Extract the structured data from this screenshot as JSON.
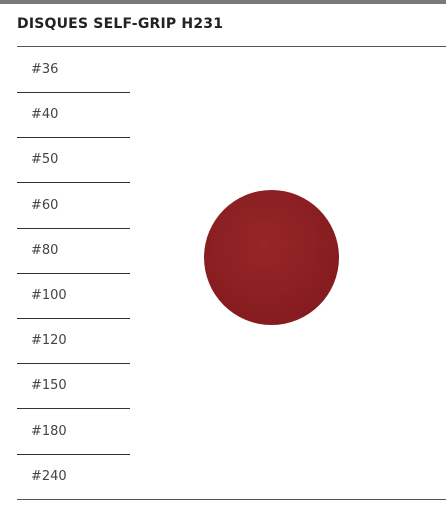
{
  "header": {
    "title": "DISQUES SELF-GRIP H231"
  },
  "grits": [
    "#36",
    "#40",
    "#50",
    "#60",
    "#80",
    "#100",
    "#120",
    "#150",
    "#180",
    "#240"
  ]
}
